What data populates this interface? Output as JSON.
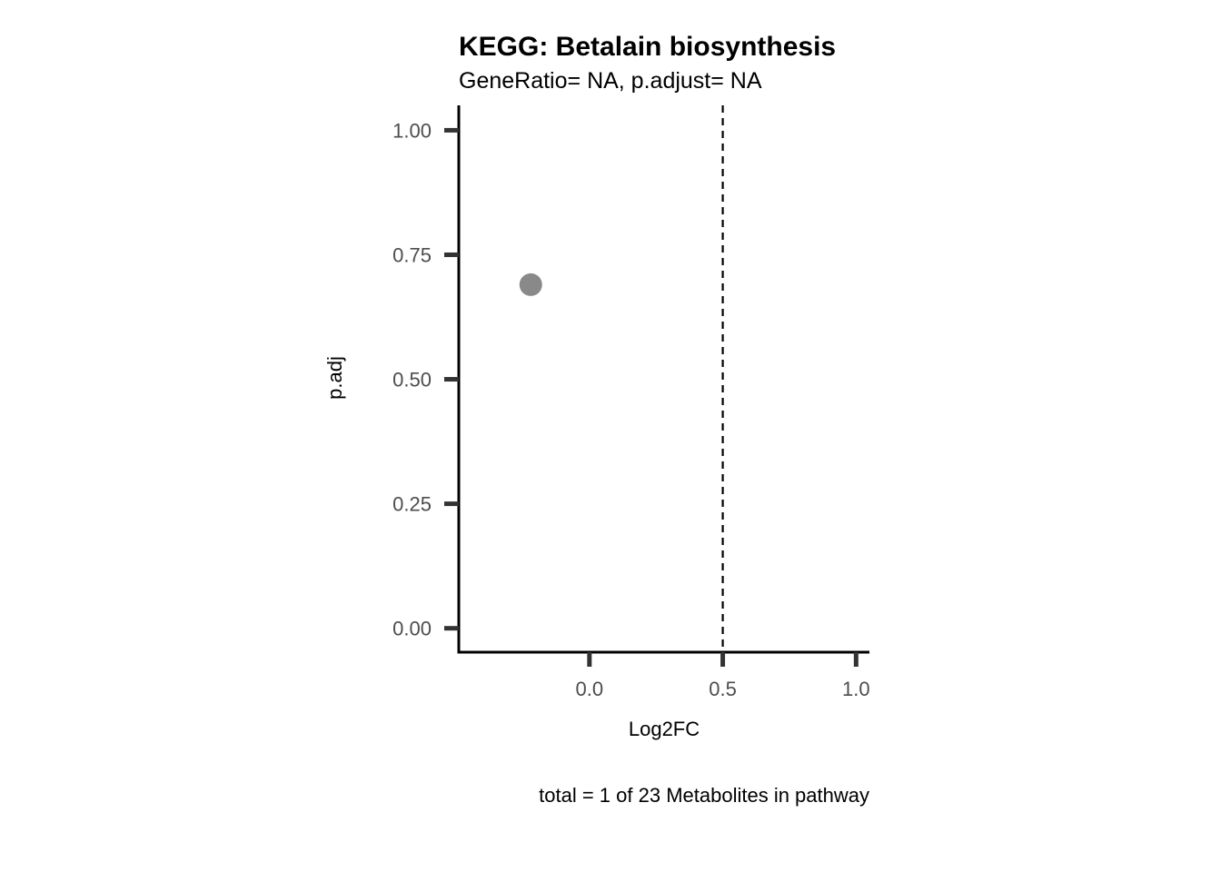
{
  "chart_data": {
    "type": "scatter",
    "title": "KEGG: Betalain biosynthesis",
    "subtitle": "GeneRatio= NA, p.adjust= NA",
    "xlabel": "Log2FC",
    "ylabel": "p.adj",
    "caption": "total = 1 of 23 Metabolites in pathway",
    "xlim": [
      -0.49,
      1.05
    ],
    "ylim": [
      -0.048,
      1.05
    ],
    "x_ticks": [
      0.0,
      0.5,
      1.0
    ],
    "x_tick_labels": [
      "0.0",
      "0.5",
      "1.0"
    ],
    "y_ticks": [
      0.0,
      0.25,
      0.5,
      0.75,
      1.0
    ],
    "y_tick_labels": [
      "0.00",
      "0.25",
      "0.50",
      "0.75",
      "1.00"
    ],
    "grid": false,
    "vline": {
      "x": 0.5,
      "style": "dashed"
    },
    "points": [
      {
        "x": -0.22,
        "y": 0.69
      }
    ],
    "colors": {
      "point": "#898989",
      "axis": "#000000",
      "tick": "#333333",
      "tick_label": "#4d4d4d",
      "vline": "#000000"
    }
  }
}
